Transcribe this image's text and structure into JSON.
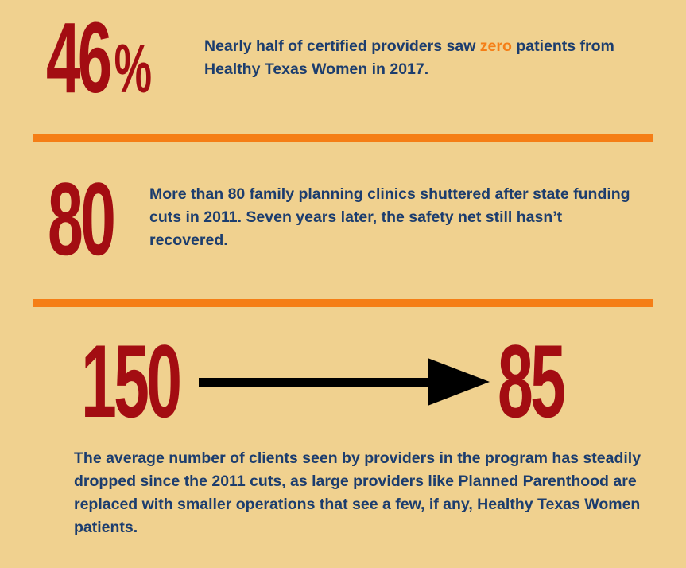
{
  "stats": {
    "first": {
      "number": "46",
      "percent_sign": "%",
      "text_before": "Nearly half of certified providers saw ",
      "highlight": "zero",
      "text_after": " patients from Healthy Texas Women in 2017."
    },
    "second": {
      "number": "80",
      "text": "More than 80 family planning clinics shuttered after state funding cuts in 2011. Seven years later, the safety net still hasn’t recovered."
    },
    "third": {
      "from_number": "150",
      "to_number": "85",
      "text": "The average number of clients seen by providers in the program has steadily dropped since the 2011 cuts, as large providers like Planned Parenthood are replaced with smaller operations that see a few, if any, Healthy Texas Women patients."
    }
  },
  "colors": {
    "background": "#f0d18f",
    "stat_number": "#a30d12",
    "body_text": "#1c3d6e",
    "accent_orange": "#f57e16",
    "arrow": "#000000"
  }
}
